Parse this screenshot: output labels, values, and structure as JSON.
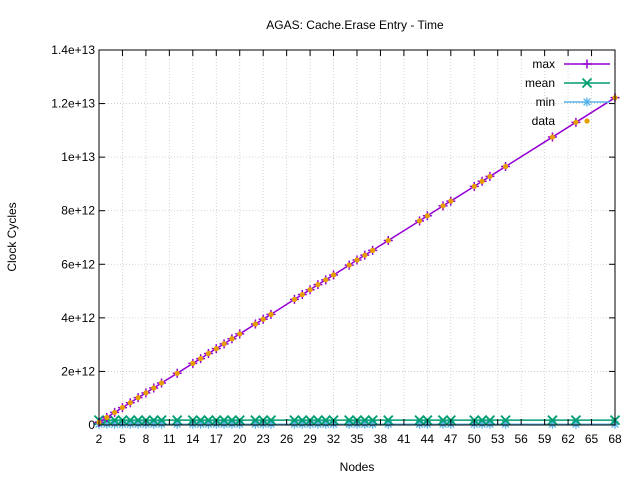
{
  "chart_data": {
    "type": "line",
    "title": "AGAS: Cache.Erase Entry - Time",
    "xlabel": "Nodes",
    "ylabel": "Clock Cycles",
    "xlim": [
      2,
      68
    ],
    "ylim": [
      0,
      14000000000000
    ],
    "xticks": [
      2,
      5,
      8,
      11,
      14,
      17,
      20,
      23,
      26,
      29,
      32,
      35,
      38,
      41,
      44,
      47,
      50,
      53,
      56,
      59,
      62,
      65,
      68
    ],
    "yticks": [
      {
        "value": 0,
        "label": "0"
      },
      {
        "value": 2000000000000,
        "label": "2e+12"
      },
      {
        "value": 4000000000000,
        "label": "4e+12"
      },
      {
        "value": 6000000000000,
        "label": "6e+12"
      },
      {
        "value": 8000000000000,
        "label": "8e+12"
      },
      {
        "value": 10000000000000,
        "label": "1e+13"
      },
      {
        "value": 12000000000000,
        "label": "1.2e+13"
      },
      {
        "value": 14000000000000,
        "label": "1.4e+13"
      }
    ],
    "grid": true,
    "legend_position": "top-right",
    "x": [
      2,
      3,
      4,
      5,
      6,
      7,
      8,
      9,
      10,
      12,
      14,
      15,
      16,
      17,
      18,
      19,
      20,
      22,
      23,
      24,
      27,
      28,
      29,
      30,
      31,
      32,
      34,
      35,
      36,
      37,
      39,
      43,
      44,
      46,
      47,
      50,
      51,
      52,
      54,
      60,
      63,
      68
    ],
    "series": [
      {
        "name": "max",
        "color": "#9400d3",
        "marker": "plus",
        "values": [
          100000000000,
          280000000000,
          470000000000,
          650000000000,
          830000000000,
          1020000000000,
          1200000000000,
          1380000000000,
          1570000000000,
          1930000000000,
          2300000000000,
          2480000000000,
          2670000000000,
          2850000000000,
          3030000000000,
          3220000000000,
          3400000000000,
          3770000000000,
          3950000000000,
          4130000000000,
          4690000000000,
          4870000000000,
          5050000000000,
          5240000000000,
          5420000000000,
          5600000000000,
          5970000000000,
          6160000000000,
          6340000000000,
          6520000000000,
          6890000000000,
          7620000000000,
          7810000000000,
          8180000000000,
          8360000000000,
          8910000000000,
          9100000000000,
          9280000000000,
          9650000000000,
          10750000000000,
          11300000000000,
          12220000000000
        ]
      },
      {
        "name": "mean",
        "color": "#009e73",
        "marker": "cross",
        "values": [
          180000000000,
          180000000000,
          180000000000,
          180000000000,
          180000000000,
          180000000000,
          180000000000,
          180000000000,
          180000000000,
          180000000000,
          180000000000,
          180000000000,
          180000000000,
          180000000000,
          180000000000,
          180000000000,
          180000000000,
          180000000000,
          180000000000,
          180000000000,
          180000000000,
          180000000000,
          180000000000,
          180000000000,
          180000000000,
          180000000000,
          180000000000,
          180000000000,
          180000000000,
          180000000000,
          180000000000,
          180000000000,
          180000000000,
          180000000000,
          180000000000,
          180000000000,
          180000000000,
          180000000000,
          180000000000,
          180000000000,
          180000000000,
          180000000000
        ]
      },
      {
        "name": "min",
        "color": "#56b4e9",
        "marker": "star",
        "values": [
          30000000000,
          30000000000,
          30000000000,
          30000000000,
          30000000000,
          30000000000,
          30000000000,
          30000000000,
          30000000000,
          30000000000,
          30000000000,
          30000000000,
          30000000000,
          30000000000,
          30000000000,
          30000000000,
          30000000000,
          30000000000,
          30000000000,
          30000000000,
          30000000000,
          30000000000,
          30000000000,
          30000000000,
          30000000000,
          30000000000,
          30000000000,
          30000000000,
          30000000000,
          30000000000,
          30000000000,
          30000000000,
          30000000000,
          30000000000,
          30000000000,
          30000000000,
          30000000000,
          30000000000,
          30000000000,
          30000000000,
          30000000000,
          30000000000
        ]
      },
      {
        "name": "data",
        "color": "#e69f00",
        "marker": "dot",
        "values": [
          100000000000,
          280000000000,
          470000000000,
          650000000000,
          830000000000,
          1020000000000,
          1200000000000,
          1380000000000,
          1570000000000,
          1930000000000,
          2300000000000,
          2480000000000,
          2670000000000,
          2850000000000,
          3030000000000,
          3220000000000,
          3400000000000,
          3770000000000,
          3950000000000,
          4130000000000,
          4690000000000,
          4870000000000,
          5050000000000,
          5240000000000,
          5420000000000,
          5600000000000,
          5970000000000,
          6160000000000,
          6340000000000,
          6520000000000,
          6890000000000,
          7620000000000,
          7810000000000,
          8180000000000,
          8360000000000,
          8910000000000,
          9100000000000,
          9280000000000,
          9650000000000,
          10750000000000,
          11300000000000,
          12220000000000
        ]
      }
    ]
  }
}
